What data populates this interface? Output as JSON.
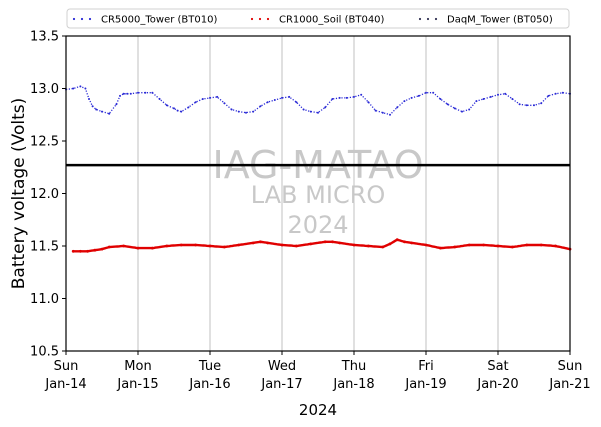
{
  "chart_data": {
    "type": "line",
    "xlabel": "2024",
    "ylabel": "Battery voltage (Volts)",
    "ylim": [
      10.5,
      13.5
    ],
    "yticks": [
      10.5,
      11.0,
      11.5,
      12.0,
      12.5,
      13.0,
      13.5
    ],
    "ytick_labels": [
      "10.5",
      "11.0",
      "11.5",
      "12.0",
      "12.5",
      "13.0",
      "13.5"
    ],
    "xlim": [
      0,
      7
    ],
    "xticks": [
      0,
      1,
      2,
      3,
      4,
      5,
      6,
      7
    ],
    "xtick_labels": [
      [
        "Sun",
        "Jan-14"
      ],
      [
        "Mon",
        "Jan-15"
      ],
      [
        "Tue",
        "Jan-16"
      ],
      [
        "Wed",
        "Jan-17"
      ],
      [
        "Thu",
        "Jan-18"
      ],
      [
        "Fri",
        "Jan-19"
      ],
      [
        "Sat",
        "Jan-20"
      ],
      [
        "Sun",
        "Jan-21"
      ]
    ],
    "grid": "vertical",
    "legend_position": "top",
    "reference_line": {
      "y": 12.27,
      "color": "#000000"
    },
    "watermark": [
      "IAG-MATAO",
      "LAB MICRO",
      "2024"
    ],
    "series": [
      {
        "name": "CR5000_Tower (BT010)",
        "color": "#2a2ad6",
        "x": [
          0,
          0.1,
          0.2,
          0.27,
          0.32,
          0.37,
          0.42,
          0.5,
          0.6,
          0.7,
          0.75,
          0.8,
          0.85,
          0.9,
          1.0,
          1.1,
          1.2,
          1.3,
          1.4,
          1.5,
          1.55,
          1.6,
          1.7,
          1.8,
          1.9,
          2.0,
          2.1,
          2.2,
          2.3,
          2.4,
          2.5,
          2.6,
          2.7,
          2.8,
          2.9,
          3.0,
          3.1,
          3.2,
          3.3,
          3.4,
          3.5,
          3.6,
          3.7,
          3.8,
          3.9,
          4.0,
          4.1,
          4.2,
          4.3,
          4.4,
          4.5,
          4.6,
          4.7,
          4.8,
          4.9,
          5.0,
          5.1,
          5.2,
          5.3,
          5.4,
          5.5,
          5.6,
          5.7,
          5.8,
          5.9,
          6.0,
          6.1,
          6.2,
          6.3,
          6.4,
          6.5,
          6.6,
          6.7,
          6.8,
          6.9,
          7.0
        ],
        "values": [
          12.99,
          13.0,
          13.02,
          13.0,
          12.9,
          12.83,
          12.8,
          12.78,
          12.76,
          12.85,
          12.93,
          12.95,
          12.95,
          12.95,
          12.96,
          12.96,
          12.96,
          12.9,
          12.84,
          12.81,
          12.79,
          12.78,
          12.82,
          12.87,
          12.9,
          12.91,
          12.92,
          12.86,
          12.8,
          12.78,
          12.77,
          12.78,
          12.83,
          12.87,
          12.89,
          12.91,
          12.92,
          12.87,
          12.8,
          12.78,
          12.77,
          12.82,
          12.9,
          12.91,
          12.91,
          12.92,
          12.94,
          12.87,
          12.79,
          12.77,
          12.75,
          12.82,
          12.88,
          12.91,
          12.93,
          12.96,
          12.96,
          12.9,
          12.85,
          12.81,
          12.78,
          12.8,
          12.88,
          12.9,
          12.92,
          12.94,
          12.95,
          12.9,
          12.85,
          12.84,
          12.84,
          12.86,
          12.93,
          12.95,
          12.96,
          12.95
        ]
      },
      {
        "name": "CR1000_Soil (BT040)",
        "color": "#e00000",
        "x": [
          0.1,
          0.2,
          0.3,
          0.4,
          0.5,
          0.6,
          0.8,
          1.0,
          1.2,
          1.4,
          1.6,
          1.8,
          2.0,
          2.2,
          2.4,
          2.6,
          2.7,
          2.8,
          3.0,
          3.2,
          3.4,
          3.6,
          3.7,
          3.8,
          4.0,
          4.2,
          4.4,
          4.5,
          4.6,
          4.7,
          4.8,
          5.0,
          5.2,
          5.4,
          5.6,
          5.8,
          6.0,
          6.2,
          6.4,
          6.6,
          6.8,
          7.0
        ],
        "values": [
          11.45,
          11.45,
          11.45,
          11.46,
          11.47,
          11.49,
          11.5,
          11.48,
          11.48,
          11.5,
          11.51,
          11.51,
          11.5,
          11.49,
          11.51,
          11.53,
          11.54,
          11.53,
          11.51,
          11.5,
          11.52,
          11.54,
          11.54,
          11.53,
          11.51,
          11.5,
          11.49,
          11.52,
          11.56,
          11.54,
          11.53,
          11.51,
          11.48,
          11.49,
          11.51,
          11.51,
          11.5,
          11.49,
          11.51,
          11.51,
          11.5,
          11.47
        ]
      },
      {
        "name": "DaqM_Tower (BT050)",
        "color": "#333355",
        "x": [],
        "values": []
      }
    ]
  }
}
